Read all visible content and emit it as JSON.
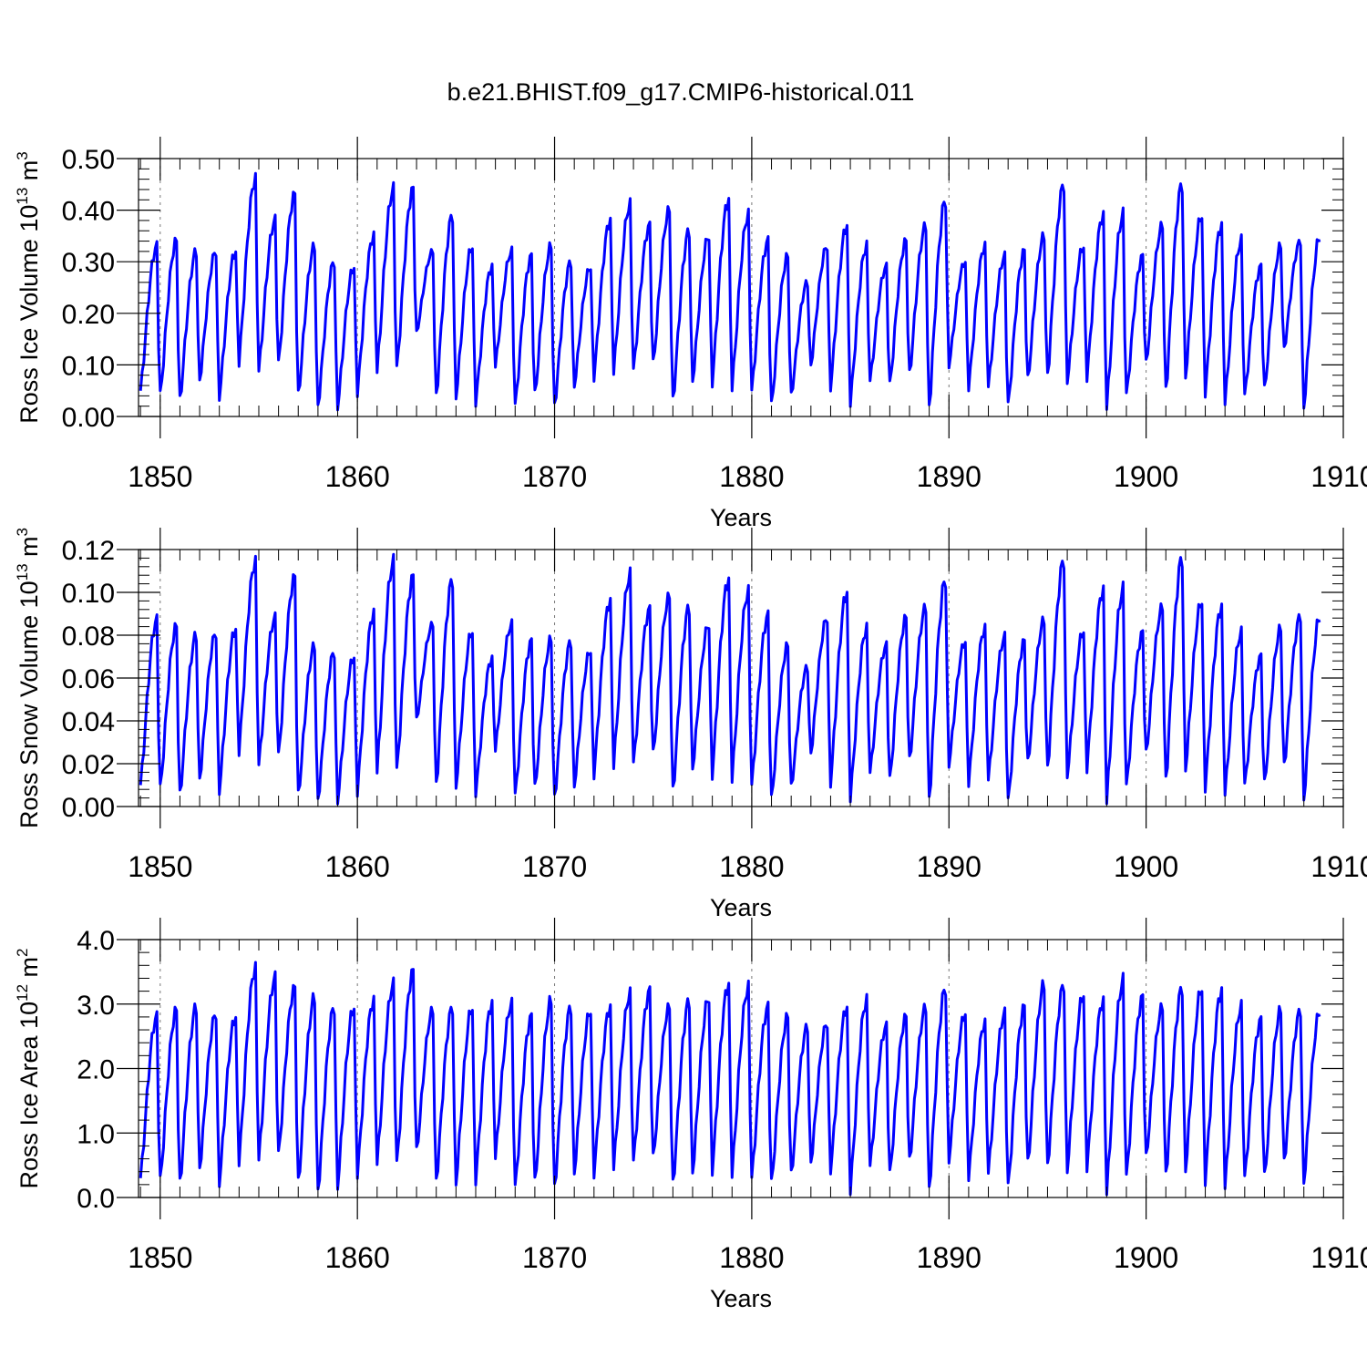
{
  "figure": {
    "title": "b.e21.BHIST.f09_g17.CMIP6-historical.011"
  },
  "colors": {
    "series": "#0000ff",
    "axis": "#000000",
    "gridline": "#777777",
    "background": "#ffffff"
  },
  "chart_data": [
    {
      "type": "line",
      "id": "ice_volume",
      "title": "",
      "ylabel": {
        "prefix": "Ross Ice Volume 10",
        "exp": "13",
        "unit": " m",
        "unit_exp": "3"
      },
      "xlabel": "Years",
      "xlim": [
        1848.9,
        1910.0
      ],
      "ylim": [
        0.0,
        0.5
      ],
      "xticks": [
        1850,
        1860,
        1870,
        1880,
        1890,
        1900,
        1910
      ],
      "xtick_labels": [
        "1850",
        "1860",
        "1870",
        "1880",
        "1890",
        "1900",
        "1910"
      ],
      "yticks": [
        0.0,
        0.1,
        0.2,
        0.3,
        0.4,
        0.5
      ],
      "ytick_labels": [
        "0.00",
        "0.10",
        "0.20",
        "0.30",
        "0.40",
        "0.50"
      ],
      "grid": "vertical dashed at major x ticks",
      "series": [
        {
          "name": "Ross Ice Volume",
          "annual_max": [
            0.33,
            0.34,
            0.32,
            0.32,
            0.32,
            0.46,
            0.38,
            0.43,
            0.33,
            0.3,
            0.29,
            0.35,
            0.44,
            0.44,
            0.32,
            0.39,
            0.33,
            0.29,
            0.32,
            0.31,
            0.33,
            0.3,
            0.29,
            0.38,
            0.41,
            0.37,
            0.4,
            0.36,
            0.35,
            0.42,
            0.39,
            0.34,
            0.31,
            0.26,
            0.33,
            0.37,
            0.33,
            0.29,
            0.34,
            0.37,
            0.42,
            0.3,
            0.33,
            0.31,
            0.32,
            0.35,
            0.45,
            0.33,
            0.39,
            0.39,
            0.31,
            0.37,
            0.45,
            0.39,
            0.37,
            0.34,
            0.29,
            0.33,
            0.34,
            0.35,
            0.3
          ],
          "annual_min": [
            0.05,
            0.04,
            0.03,
            0.07,
            0.04,
            0.11,
            0.09,
            0.1,
            0.04,
            0.02,
            0.02,
            0.05,
            0.09,
            0.09,
            0.16,
            0.04,
            0.04,
            0.03,
            0.1,
            0.02,
            0.04,
            0.02,
            0.06,
            0.08,
            0.09,
            0.09,
            0.1,
            0.03,
            0.07,
            0.07,
            0.06,
            0.05,
            0.02,
            0.04,
            0.1,
            0.06,
            0.03,
            0.07,
            0.06,
            0.08,
            0.02,
            0.1,
            0.06,
            0.06,
            0.02,
            0.07,
            0.08,
            0.07,
            0.08,
            0.02,
            0.04,
            0.1,
            0.05,
            0.08,
            0.05,
            0.03,
            0.04,
            0.05,
            0.13,
            0.02
          ]
        }
      ]
    },
    {
      "type": "line",
      "id": "snow_volume",
      "title": "",
      "ylabel": {
        "prefix": "Ross Snow Volume 10",
        "exp": "13",
        "unit": " m",
        "unit_exp": "3"
      },
      "xlabel": "Years",
      "xlim": [
        1848.9,
        1910.0
      ],
      "ylim": [
        0.0,
        0.12
      ],
      "xticks": [
        1850,
        1860,
        1870,
        1880,
        1890,
        1900,
        1910
      ],
      "xtick_labels": [
        "1850",
        "1860",
        "1870",
        "1880",
        "1890",
        "1900",
        "1910"
      ],
      "yticks": [
        0.0,
        0.02,
        0.04,
        0.06,
        0.08,
        0.1,
        0.12
      ],
      "ytick_labels": [
        "0.00",
        "0.02",
        "0.04",
        "0.06",
        "0.08",
        "0.10",
        "0.12"
      ],
      "grid": "vertical dashed at major x ticks",
      "series": [
        {
          "name": "Ross Snow Volume",
          "annual_max": [
            0.087,
            0.084,
            0.08,
            0.081,
            0.083,
            0.114,
            0.088,
            0.107,
            0.075,
            0.072,
            0.07,
            0.09,
            0.114,
            0.107,
            0.085,
            0.106,
            0.082,
            0.069,
            0.085,
            0.077,
            0.078,
            0.077,
            0.073,
            0.096,
            0.108,
            0.092,
            0.098,
            0.093,
            0.085,
            0.106,
            0.1,
            0.089,
            0.075,
            0.065,
            0.088,
            0.1,
            0.083,
            0.075,
            0.088,
            0.093,
            0.106,
            0.077,
            0.083,
            0.079,
            0.077,
            0.087,
            0.115,
            0.082,
            0.101,
            0.101,
            0.081,
            0.093,
            0.116,
            0.096,
            0.093,
            0.081,
            0.07,
            0.083,
            0.089,
            0.089,
            0.079
          ],
          "annual_min": [
            0.01,
            0.008,
            0.005,
            0.013,
            0.008,
            0.027,
            0.02,
            0.023,
            0.005,
            0.003,
            0.003,
            0.008,
            0.017,
            0.016,
            0.04,
            0.01,
            0.01,
            0.007,
            0.027,
            0.005,
            0.008,
            0.004,
            0.01,
            0.016,
            0.02,
            0.02,
            0.024,
            0.007,
            0.018,
            0.016,
            0.014,
            0.01,
            0.003,
            0.009,
            0.025,
            0.012,
            0.005,
            0.016,
            0.012,
            0.021,
            0.004,
            0.02,
            0.012,
            0.013,
            0.002,
            0.02,
            0.018,
            0.015,
            0.019,
            0.003,
            0.009,
            0.024,
            0.012,
            0.018,
            0.01,
            0.007,
            0.01,
            0.01,
            0.019,
            0.004
          ]
        }
      ]
    },
    {
      "type": "line",
      "id": "ice_area",
      "title": "",
      "ylabel": {
        "prefix": "Ross Ice Area 10",
        "exp": "12",
        "unit": " m",
        "unit_exp": "2"
      },
      "xlabel": "Years",
      "xlim": [
        1848.9,
        1910.0
      ],
      "ylim": [
        0.0,
        4.0
      ],
      "xticks": [
        1850,
        1860,
        1870,
        1880,
        1890,
        1900,
        1910
      ],
      "xtick_labels": [
        "1850",
        "1860",
        "1870",
        "1880",
        "1890",
        "1900",
        "1910"
      ],
      "yticks": [
        0.0,
        1.0,
        2.0,
        3.0,
        4.0
      ],
      "ytick_labels": [
        "0.0",
        "1.0",
        "2.0",
        "3.0",
        "4.0"
      ],
      "grid": "vertical dashed at major x ticks",
      "series": [
        {
          "name": "Ross Ice Area",
          "annual_max": [
            2.8,
            2.9,
            2.95,
            2.85,
            2.8,
            3.55,
            3.4,
            3.25,
            3.1,
            2.95,
            2.95,
            3.05,
            3.3,
            3.5,
            2.9,
            2.95,
            2.95,
            3.0,
            3.0,
            2.8,
            3.05,
            2.95,
            2.9,
            2.95,
            3.15,
            3.2,
            2.95,
            3.05,
            3.1,
            3.3,
            3.25,
            2.95,
            2.8,
            2.65,
            2.7,
            2.95,
            3.05,
            2.65,
            2.8,
            2.95,
            3.25,
            2.85,
            2.7,
            2.85,
            2.95,
            3.3,
            3.3,
            3.15,
            3.05,
            3.35,
            3.1,
            2.95,
            3.25,
            3.25,
            3.2,
            2.95,
            2.75,
            2.9,
            2.9,
            2.9,
            3.0
          ],
          "annual_min": [
            0.3,
            0.25,
            0.2,
            0.45,
            0.25,
            0.6,
            0.6,
            0.65,
            0.2,
            0.1,
            0.2,
            0.4,
            0.55,
            0.5,
            0.7,
            0.25,
            0.25,
            0.3,
            0.65,
            0.15,
            0.2,
            0.15,
            0.4,
            0.4,
            0.5,
            0.55,
            0.6,
            0.2,
            0.4,
            0.45,
            0.4,
            0.3,
            0.2,
            0.35,
            0.55,
            0.45,
            0.15,
            0.5,
            0.35,
            0.55,
            0.15,
            0.6,
            0.35,
            0.4,
            0.15,
            0.5,
            0.5,
            0.45,
            0.5,
            0.1,
            0.3,
            0.6,
            0.35,
            0.45,
            0.3,
            0.2,
            0.3,
            0.3,
            0.55,
            0.25
          ]
        }
      ]
    }
  ]
}
